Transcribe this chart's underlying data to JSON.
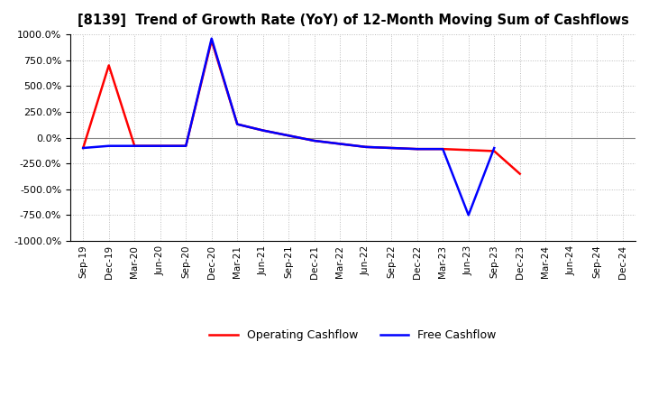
{
  "title": "[8139]  Trend of Growth Rate (YoY) of 12-Month Moving Sum of Cashflows",
  "background_color": "#ffffff",
  "grid_color": "#bbbbbb",
  "grid_style": "dotted",
  "ylim": [
    -1000,
    1000
  ],
  "yticks": [
    -1000,
    -750,
    -500,
    -250,
    0,
    250,
    500,
    750,
    1000
  ],
  "legend": [
    {
      "label": "Operating Cashflow",
      "color": "#ff0000"
    },
    {
      "label": "Free Cashflow",
      "color": "#0000ff"
    }
  ],
  "x_labels": [
    "Sep-19",
    "Dec-19",
    "Mar-20",
    "Jun-20",
    "Sep-20",
    "Dec-20",
    "Mar-21",
    "Jun-21",
    "Sep-21",
    "Dec-21",
    "Mar-22",
    "Jun-22",
    "Sep-22",
    "Dec-22",
    "Mar-23",
    "Jun-23",
    "Sep-23",
    "Dec-23",
    "Mar-24",
    "Jun-24",
    "Sep-24",
    "Dec-24"
  ],
  "operating_cashflow": [
    -100,
    700,
    -80,
    -80,
    -80,
    940,
    130,
    70,
    20,
    -30,
    -60,
    -90,
    -100,
    -110,
    -110,
    -120,
    -130,
    -350,
    null,
    null,
    null,
    null
  ],
  "free_cashflow": [
    -100,
    -80,
    -80,
    -80,
    -80,
    960,
    130,
    70,
    20,
    -30,
    -60,
    -90,
    -100,
    -110,
    -110,
    -750,
    -100,
    null,
    null,
    null,
    null,
    null
  ]
}
